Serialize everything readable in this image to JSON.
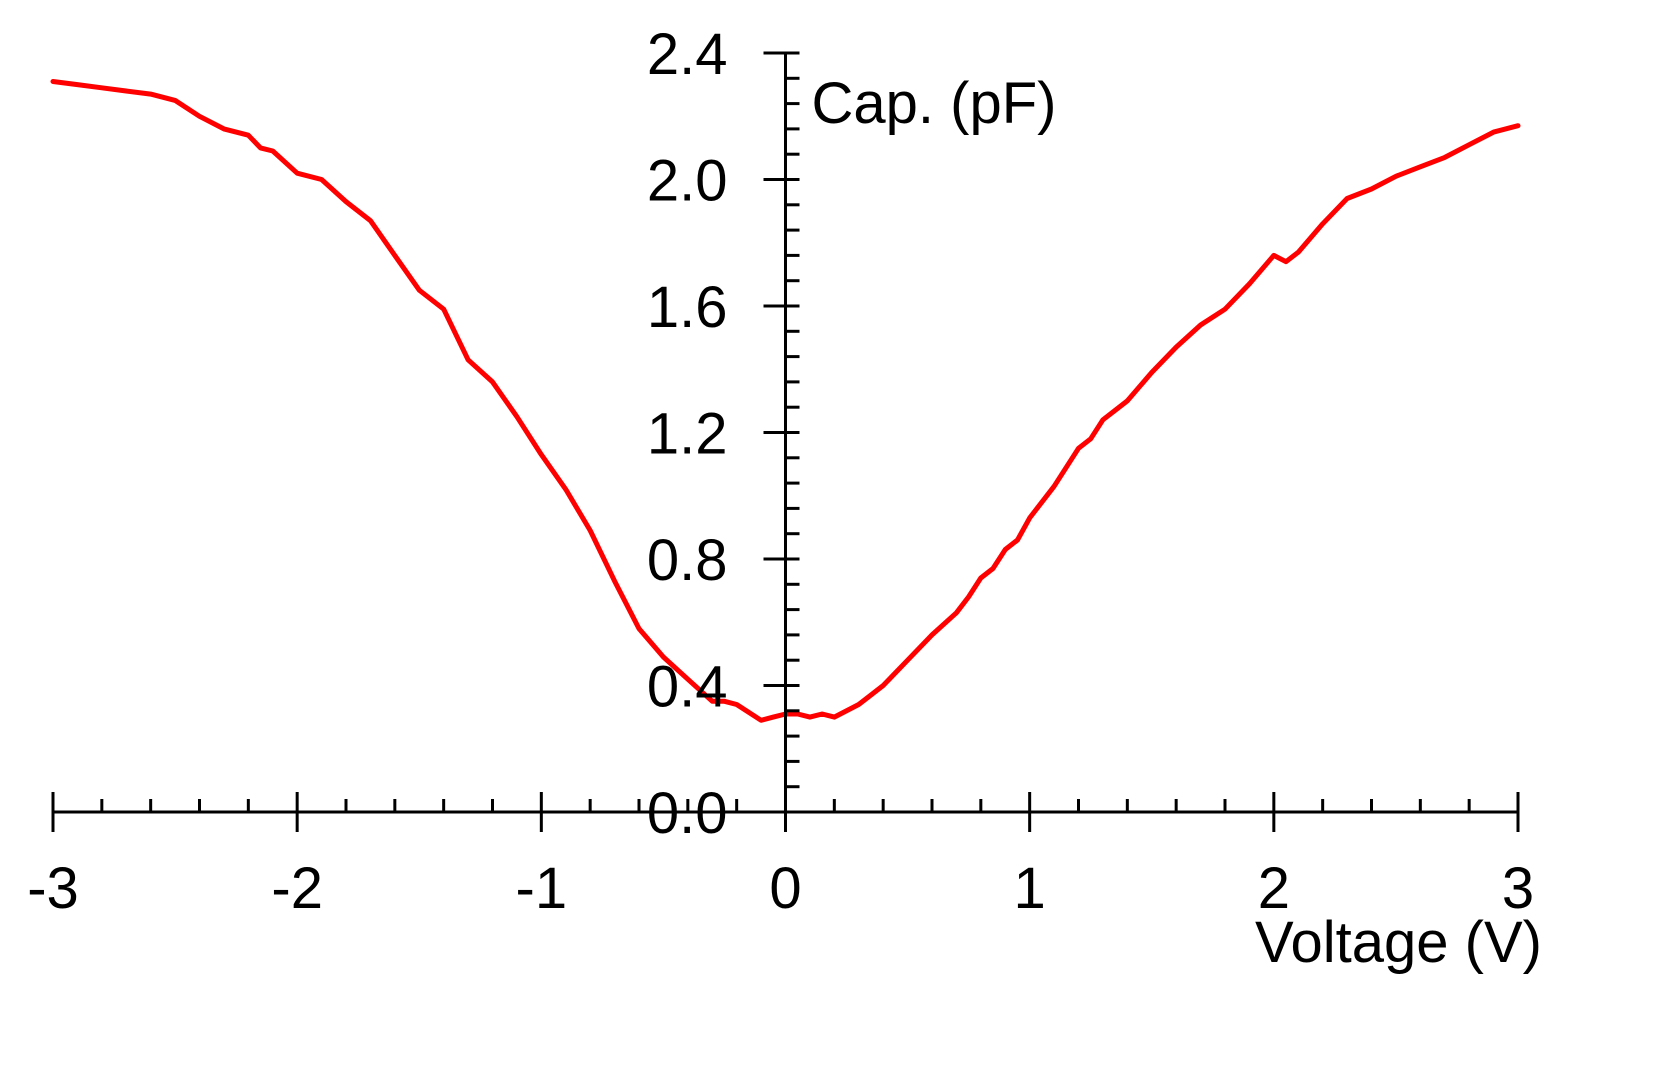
{
  "chart_data": {
    "type": "line",
    "title": "",
    "xlabel": "Voltage (V)",
    "ylabel": "Cap. (pF)",
    "xlim": [
      -3,
      3
    ],
    "ylim": [
      0,
      2.4
    ],
    "x_ticks": [
      -3,
      -2,
      -1,
      0,
      1,
      2,
      3
    ],
    "x_tick_labels": [
      "-3",
      "-2",
      "-1",
      "0",
      "1",
      "2",
      "3"
    ],
    "x_minor_step": 0.2,
    "y_ticks": [
      0.0,
      0.4,
      0.8,
      1.2,
      1.6,
      2.0,
      2.4
    ],
    "y_tick_labels": [
      "0.0",
      "0.4",
      "0.8",
      "1.2",
      "1.6",
      "2.0",
      "2.4"
    ],
    "y_minor_step": 0.08,
    "grid": false,
    "axes_cross_at_origin": true,
    "series": [
      {
        "color": "#ff0000",
        "x": [
          -3.0,
          -2.9,
          -2.8,
          -2.7,
          -2.6,
          -2.5,
          -2.4,
          -2.3,
          -2.2,
          -2.15,
          -2.1,
          -2.0,
          -1.9,
          -1.8,
          -1.7,
          -1.6,
          -1.5,
          -1.4,
          -1.3,
          -1.2,
          -1.1,
          -1.0,
          -0.9,
          -0.8,
          -0.7,
          -0.6,
          -0.5,
          -0.4,
          -0.3,
          -0.25,
          -0.2,
          -0.1,
          -0.05,
          0.0,
          0.05,
          0.1,
          0.15,
          0.2,
          0.3,
          0.35,
          0.4,
          0.5,
          0.6,
          0.7,
          0.75,
          0.8,
          0.85,
          0.9,
          0.95,
          1.0,
          1.1,
          1.2,
          1.25,
          1.3,
          1.35,
          1.4,
          1.5,
          1.6,
          1.7,
          1.8,
          1.9,
          2.0,
          2.05,
          2.1,
          2.2,
          2.3,
          2.4,
          2.5,
          2.6,
          2.7,
          2.8,
          2.9,
          3.0
        ],
        "y": [
          2.31,
          2.3,
          2.29,
          2.28,
          2.27,
          2.25,
          2.2,
          2.16,
          2.14,
          2.1,
          2.09,
          2.02,
          2.0,
          1.93,
          1.87,
          1.76,
          1.65,
          1.59,
          1.43,
          1.36,
          1.25,
          1.13,
          1.02,
          0.89,
          0.73,
          0.58,
          0.49,
          0.42,
          0.35,
          0.35,
          0.34,
          0.29,
          0.3,
          0.31,
          0.31,
          0.3,
          0.31,
          0.3,
          0.34,
          0.37,
          0.4,
          0.48,
          0.56,
          0.63,
          0.68,
          0.74,
          0.77,
          0.83,
          0.86,
          0.93,
          1.03,
          1.15,
          1.18,
          1.24,
          1.27,
          1.3,
          1.39,
          1.47,
          1.54,
          1.59,
          1.67,
          1.76,
          1.74,
          1.77,
          1.86,
          1.94,
          1.97,
          2.01,
          2.04,
          2.07,
          2.11,
          2.15,
          2.17
        ]
      }
    ]
  }
}
